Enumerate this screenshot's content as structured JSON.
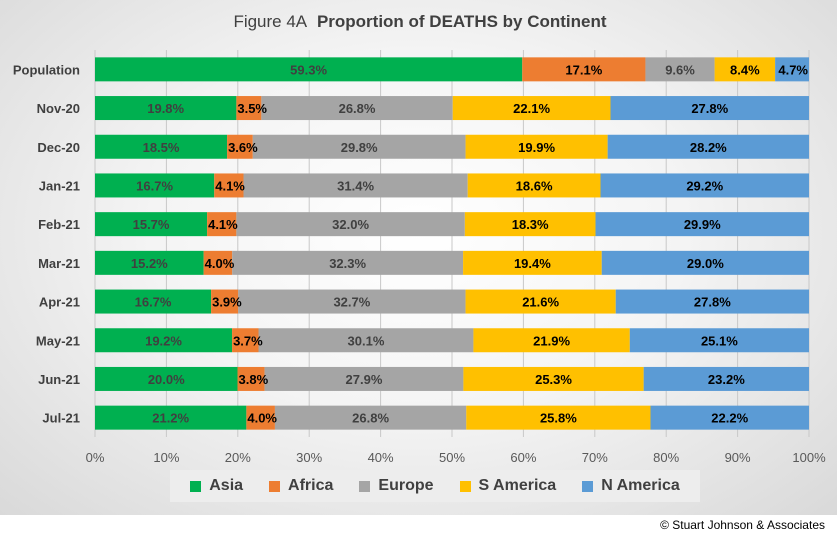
{
  "chart_data": {
    "type": "bar",
    "orientation": "horizontal",
    "stacked": "percent",
    "title_prefix": "Figure  4A",
    "title_main": "Proportion of DEATHS by Continent",
    "categories": [
      "Population",
      "Nov-20",
      "Dec-20",
      "Jan-21",
      "Feb-21",
      "Mar-21",
      "Apr-21",
      "May-21",
      "Jun-21",
      "Jul-21"
    ],
    "series": [
      {
        "name": "Asia",
        "color": "#00b050",
        "label_color": "#404040",
        "values": [
          59.3,
          19.8,
          18.5,
          16.7,
          15.7,
          15.2,
          16.7,
          19.2,
          20.0,
          21.2
        ]
      },
      {
        "name": "Africa",
        "color": "#ed7d31",
        "label_color": "#000000",
        "values": [
          17.1,
          3.5,
          3.6,
          4.1,
          4.1,
          4.0,
          3.9,
          3.7,
          3.8,
          4.0
        ]
      },
      {
        "name": "Europe",
        "color": "#a5a5a5",
        "label_color": "#404040",
        "values": [
          9.6,
          26.8,
          29.8,
          31.4,
          32.0,
          32.3,
          32.7,
          30.1,
          27.9,
          26.8
        ]
      },
      {
        "name": "S America",
        "color": "#ffc000",
        "label_color": "#000000",
        "values": [
          8.4,
          22.1,
          19.9,
          18.6,
          18.3,
          19.4,
          21.6,
          21.9,
          25.3,
          25.8
        ]
      },
      {
        "name": "N America",
        "color": "#5b9bd5",
        "label_color": "#000000",
        "values": [
          4.7,
          27.8,
          28.2,
          29.2,
          29.9,
          29.0,
          27.8,
          25.1,
          23.2,
          22.2
        ]
      }
    ],
    "data_labels": [
      [
        "59.3%",
        "17.1%",
        "9.6%",
        "8.4%",
        "4.7%"
      ],
      [
        "19.8%",
        "3.5%",
        "26.8%",
        "22.1%",
        "27.8%"
      ],
      [
        "18.5%",
        "3.6%",
        "29.8%",
        "19.9%",
        "28.2%"
      ],
      [
        "16.7%",
        "4.1%",
        "31.4%",
        "18.6%",
        "29.2%"
      ],
      [
        "15.7%",
        "4.1%",
        "32.0%",
        "18.3%",
        "29.9%"
      ],
      [
        "15.2%",
        "4.0%",
        "32.3%",
        "19.4%",
        "29.0%"
      ],
      [
        "16.7%",
        "3.9%",
        "32.7%",
        "21.6%",
        "27.8%"
      ],
      [
        "19.2%",
        "3.7%",
        "30.1%",
        "21.9%",
        "25.1%"
      ],
      [
        "20.0%",
        "3.8%",
        "27.9%",
        "25.3%",
        "23.2%"
      ],
      [
        "21.2%",
        "4.0%",
        "26.8%",
        "25.8%",
        "22.2%"
      ]
    ],
    "xlim": [
      0,
      100
    ],
    "x_ticks": [
      "0%",
      "10%",
      "20%",
      "30%",
      "40%",
      "50%",
      "60%",
      "70%",
      "80%",
      "90%",
      "100%"
    ],
    "grid": true,
    "legend_position": "bottom"
  },
  "footer": {
    "copyright": "© Stuart Johnson & Associates"
  }
}
